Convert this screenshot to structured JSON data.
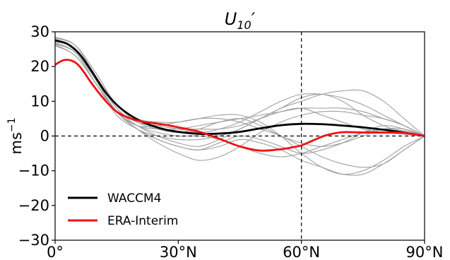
{
  "chart_data": {
    "type": "line",
    "title_base": "U",
    "title_sub": "10",
    "title_prime": "′",
    "ylabel_base": "ms",
    "ylabel_sup": "−1",
    "xlim": [
      0,
      90
    ],
    "ylim": [
      -30,
      30
    ],
    "xticks": [
      0,
      30,
      60,
      90
    ],
    "xtick_labels": [
      "0°",
      "30°N",
      "60°N",
      "90°N"
    ],
    "yticks": [
      -30,
      -20,
      -10,
      0,
      10,
      20,
      30
    ],
    "ytick_labels": [
      "−30",
      "−20",
      "−10",
      "0",
      "10",
      "20",
      "30"
    ],
    "reference_lines": {
      "horizontal_y": 0,
      "vertical_x": 60
    },
    "legend_position": "lower-left",
    "colors": {
      "waccm4": "#000000",
      "era": "#ee1111",
      "members": "#a0a0a0"
    },
    "series": [
      {
        "name": "WACCM4",
        "color": "#000000",
        "x": [
          0,
          3,
          6,
          9,
          12,
          15,
          18,
          21,
          24,
          27,
          30,
          33,
          36,
          40,
          45,
          50,
          55,
          60,
          65,
          70,
          75,
          80,
          85,
          90
        ],
        "y": [
          27.5,
          26.5,
          23.5,
          18.5,
          13,
          9,
          6.2,
          4.2,
          2.8,
          1.8,
          1.2,
          0.8,
          0.6,
          0.7,
          1.2,
          2.2,
          3.1,
          3.5,
          3.4,
          3.0,
          2.5,
          1.8,
          1.0,
          0
        ]
      },
      {
        "name": "ERA-Interim",
        "color": "#ee1111",
        "x": [
          0,
          2,
          4,
          6,
          9,
          12,
          15,
          18,
          21,
          24,
          27,
          30,
          33,
          36,
          40,
          45,
          50,
          55,
          58,
          60,
          63,
          66,
          70,
          75,
          80,
          85,
          90
        ],
        "y": [
          20.5,
          21.8,
          21.7,
          20,
          15,
          10.5,
          7,
          5.2,
          4.2,
          3.7,
          3.2,
          2.5,
          1.8,
          0.9,
          -0.8,
          -3,
          -4.2,
          -3.8,
          -3.2,
          -2.7,
          -1.2,
          0.2,
          1.1,
          1.0,
          1.0,
          0.9,
          0
        ]
      },
      {
        "x": [
          0,
          5,
          10,
          15,
          20,
          25,
          30,
          35,
          40,
          45,
          50,
          55,
          60,
          65,
          70,
          75,
          80,
          85,
          90
        ],
        "y": [
          28.5,
          26,
          17,
          8,
          4,
          3,
          2,
          1,
          2,
          4,
          7,
          10,
          12,
          12,
          11,
          9,
          6,
          3,
          0
        ]
      },
      {
        "x": [
          0,
          5,
          10,
          15,
          20,
          25,
          30,
          35,
          40,
          45,
          50,
          55,
          60,
          65,
          70,
          75,
          80,
          85,
          90
        ],
        "y": [
          27.8,
          25,
          16,
          7,
          3,
          0,
          -2,
          -3,
          -1,
          2,
          5,
          8,
          10,
          12,
          13,
          13,
          10,
          5,
          0
        ]
      },
      {
        "x": [
          0,
          5,
          10,
          15,
          20,
          25,
          30,
          35,
          40,
          45,
          50,
          55,
          60,
          65,
          70,
          75,
          80,
          85,
          90
        ],
        "y": [
          27,
          24,
          16,
          7,
          2,
          -2,
          -5,
          -7,
          -6,
          -3,
          1,
          4,
          6,
          7,
          7,
          6,
          5,
          3,
          0
        ]
      },
      {
        "x": [
          0,
          5,
          10,
          15,
          20,
          25,
          30,
          35,
          40,
          45,
          50,
          55,
          60,
          65,
          70,
          75,
          80,
          85,
          90
        ],
        "y": [
          26.5,
          24,
          16,
          7,
          3,
          3,
          4,
          5,
          5,
          4,
          2,
          0,
          -3,
          -6,
          -8,
          -9,
          -8,
          -4,
          0
        ]
      },
      {
        "x": [
          0,
          5,
          10,
          15,
          20,
          25,
          30,
          35,
          40,
          45,
          50,
          55,
          60,
          65,
          70,
          75,
          80,
          85,
          90
        ],
        "y": [
          26,
          23,
          15,
          6,
          2,
          -1,
          -3,
          -4,
          -3,
          -1,
          -2,
          -4,
          -7,
          -9,
          -11,
          -11,
          -8,
          -4,
          0
        ]
      },
      {
        "x": [
          0,
          5,
          10,
          15,
          20,
          25,
          30,
          35,
          40,
          45,
          50,
          55,
          60,
          65,
          70,
          75,
          80,
          85,
          90
        ],
        "y": [
          28,
          25,
          17,
          8,
          4,
          3,
          2,
          2,
          2,
          3,
          5,
          7,
          8,
          6,
          4,
          2,
          1,
          0.5,
          0
        ]
      },
      {
        "x": [
          0,
          5,
          10,
          15,
          20,
          25,
          30,
          35,
          40,
          45,
          50,
          55,
          60,
          65,
          70,
          75,
          80,
          85,
          90
        ],
        "y": [
          27.3,
          25,
          17,
          9,
          4,
          2,
          1,
          2,
          4,
          5,
          3,
          0,
          -2,
          -3,
          -2,
          0,
          2,
          2,
          0
        ]
      },
      {
        "x": [
          0,
          5,
          10,
          15,
          20,
          25,
          30,
          35,
          40,
          45,
          50,
          55,
          60,
          65,
          70,
          75,
          80,
          85,
          90
        ],
        "y": [
          26.8,
          24,
          15,
          7,
          2,
          0,
          -1,
          -1,
          0,
          2,
          5,
          8,
          11,
          12,
          10,
          6,
          3,
          1,
          0
        ]
      },
      {
        "x": [
          0,
          5,
          10,
          15,
          20,
          25,
          30,
          35,
          40,
          45,
          50,
          55,
          60,
          65,
          70,
          75,
          80,
          85,
          90
        ],
        "y": [
          27.5,
          25,
          17,
          8,
          3,
          1,
          0,
          0,
          -1,
          -3,
          -5,
          -6,
          -5,
          -3,
          -1,
          1,
          2,
          1.5,
          0
        ]
      },
      {
        "x": [
          0,
          5,
          10,
          15,
          20,
          25,
          30,
          35,
          40,
          45,
          50,
          55,
          60,
          65,
          70,
          75,
          80,
          85,
          90
        ],
        "y": [
          28.2,
          26,
          18,
          9,
          5,
          4,
          4,
          5,
          6,
          6,
          4,
          0,
          -5,
          -9,
          -11,
          -10,
          -7,
          -3,
          0
        ]
      },
      {
        "x": [
          0,
          5,
          10,
          15,
          20,
          25,
          30,
          35,
          40,
          45,
          50,
          55,
          60,
          65,
          70,
          75,
          80,
          85,
          90
        ],
        "y": [
          26.3,
          23,
          15,
          7,
          3,
          2,
          2,
          3,
          4,
          5,
          6,
          7,
          8,
          8,
          8,
          7,
          5,
          3,
          0
        ]
      },
      {
        "x": [
          0,
          5,
          10,
          15,
          20,
          25,
          30,
          35,
          40,
          45,
          50,
          55,
          60,
          65,
          70,
          75,
          80,
          85,
          90
        ],
        "y": [
          27.7,
          25,
          16,
          7,
          2,
          -1,
          -3,
          -4,
          -2,
          0,
          -1,
          -3,
          -5,
          -4,
          -2,
          1,
          3,
          2,
          0
        ]
      }
    ]
  }
}
